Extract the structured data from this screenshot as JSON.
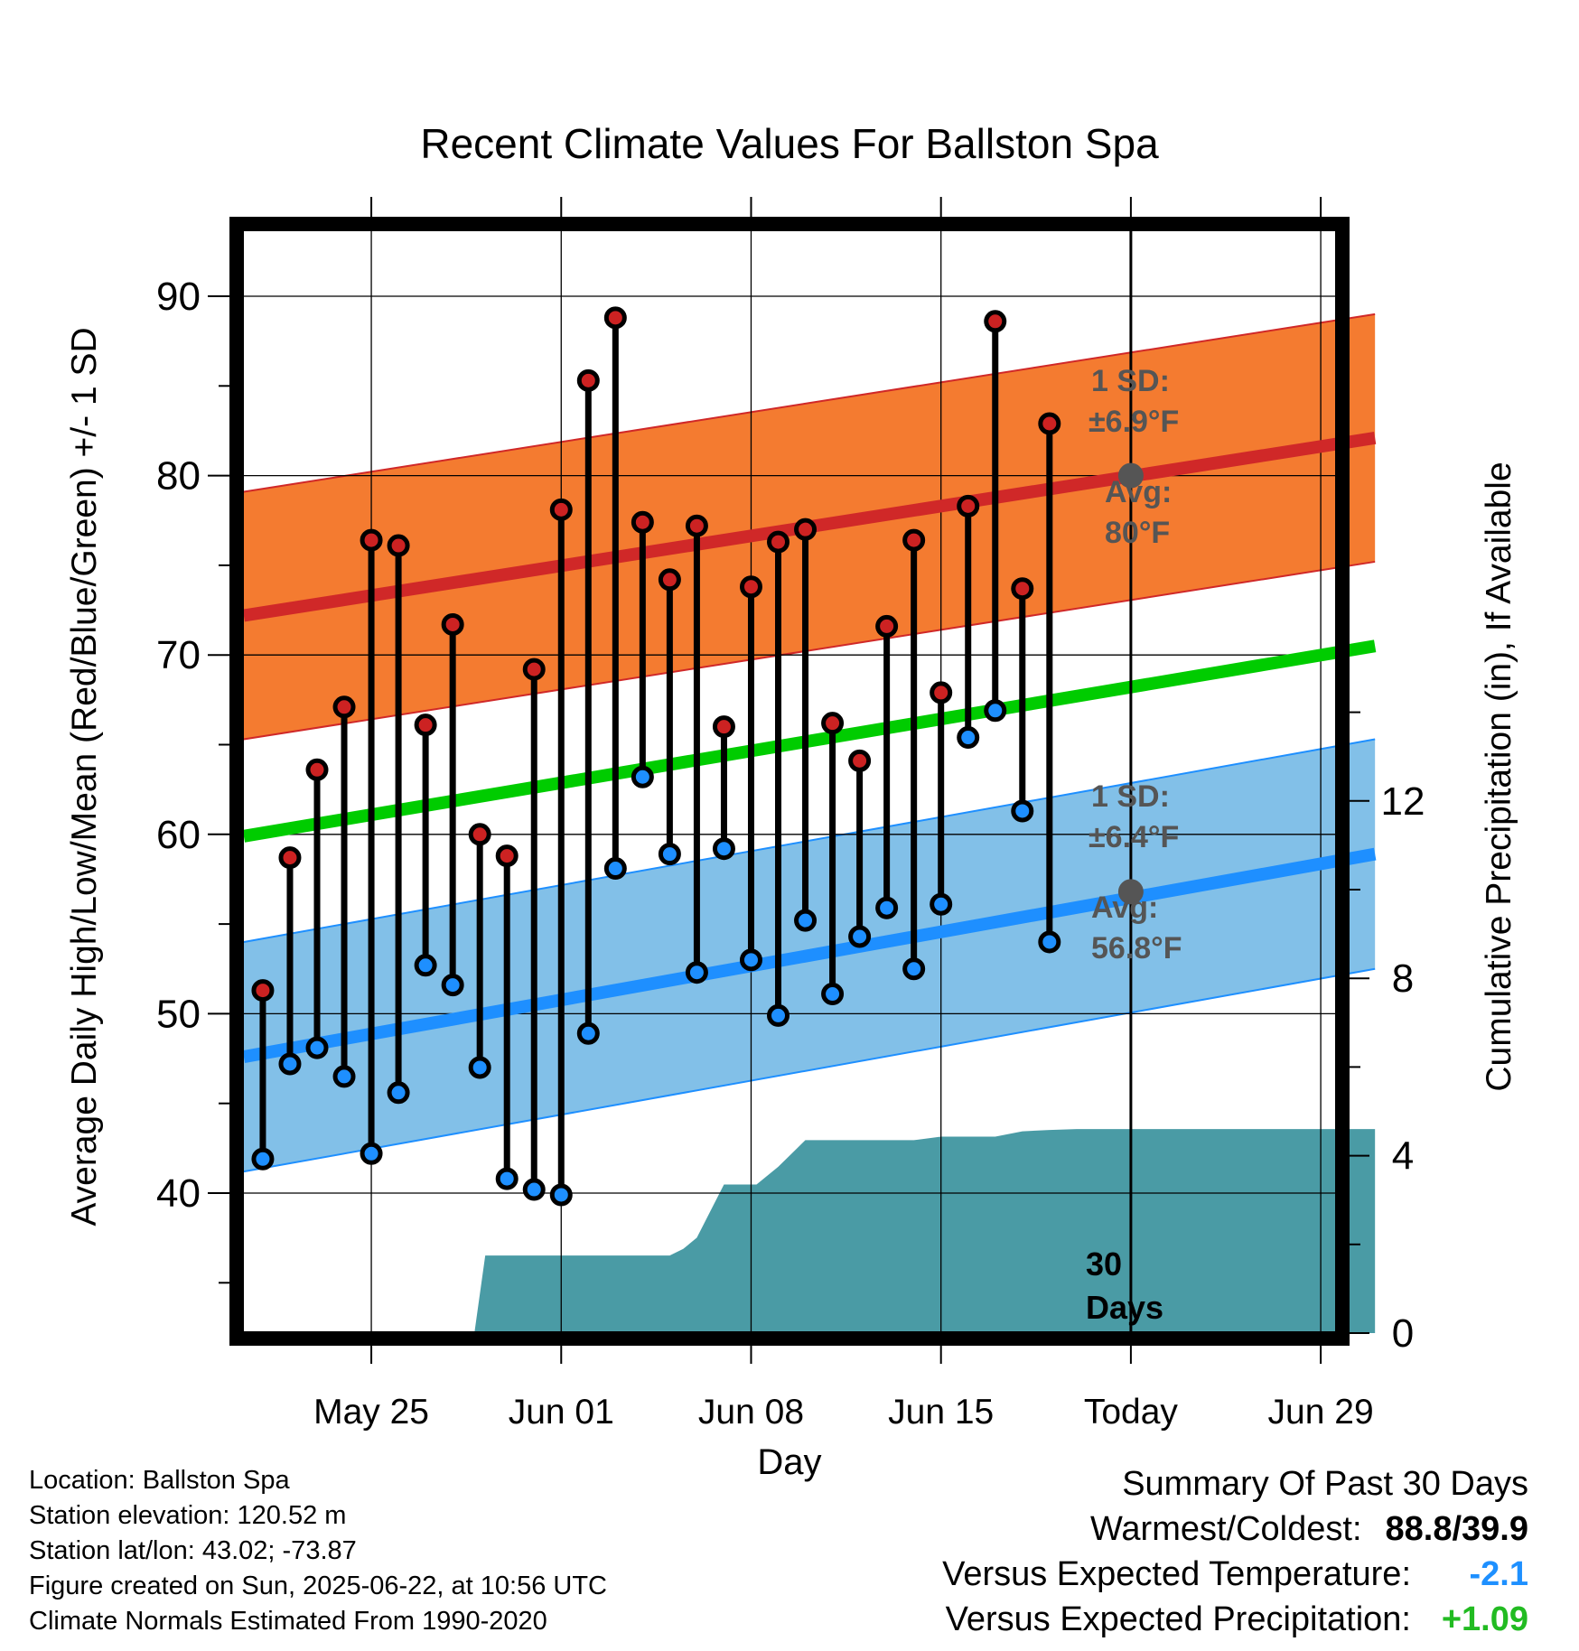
{
  "chart_data": {
    "type": "line",
    "title": "Recent Climate Values For Ballston Spa",
    "xlabel": "Day",
    "ylabel": "Average Daily High/Low/Mean (Red/Blue/Green) +/- 1 SD",
    "y2label": "Cumulative Precipitation (in), If Available",
    "xlim": [
      -3.3,
      39.3
    ],
    "ylim": [
      32.3,
      94
    ],
    "y2lim": [
      0,
      24.6
    ],
    "grid": true,
    "yticks": [
      40,
      50,
      60,
      70,
      80,
      90
    ],
    "y2ticks": [
      0,
      4,
      8,
      12
    ],
    "xticks": [
      {
        "x": 2,
        "label": "May 25"
      },
      {
        "x": 9,
        "label": "Jun 01"
      },
      {
        "x": 16,
        "label": "Jun 08"
      },
      {
        "x": 23,
        "label": "Jun 15"
      },
      {
        "x": 30,
        "label": "Today"
      },
      {
        "x": 37,
        "label": "Jun 29"
      }
    ],
    "today_x": 30,
    "today_label_line1": "30",
    "today_label_line2": "Days",
    "normal_high": {
      "x": [
        -2.7,
        39
      ],
      "values": [
        72.2,
        82.1
      ],
      "sd": 6.9
    },
    "normal_low": {
      "x": [
        -2.7,
        39
      ],
      "values": [
        47.6,
        58.9
      ],
      "sd": 6.4
    },
    "normal_mean": {
      "x": [
        -2.7,
        39
      ],
      "values": [
        59.9,
        70.5
      ]
    },
    "high_annotation": {
      "line1": "1 SD:",
      "line2": "±6.9°F",
      "avg_label": "Avg:",
      "avg_value": "80°F",
      "avg": 80
    },
    "low_annotation": {
      "line1": "1 SD:",
      "line2": "±6.4°F",
      "avg_label": "Avg:",
      "avg_value": "56.8°F",
      "avg": 56.8
    },
    "daily_x": [
      -2,
      -1,
      0,
      1,
      2,
      3,
      4,
      5,
      6,
      7,
      8,
      9,
      10,
      11,
      12,
      13,
      14,
      15,
      16,
      17,
      18,
      19,
      20,
      21,
      22,
      23,
      24,
      25,
      26,
      27,
      28,
      29
    ],
    "daily_high": [
      51.3,
      58.7,
      63.6,
      67.1,
      76.4,
      76.1,
      66.1,
      71.7,
      60.0,
      58.8,
      69.2,
      78.1,
      85.3,
      88.8,
      77.4,
      74.2,
      77.2,
      66.0,
      73.8,
      76.3,
      77.0,
      66.2,
      64.1,
      71.6,
      76.4,
      67.9,
      78.3,
      88.6,
      73.7,
      82.9,
      null,
      null
    ],
    "daily_low": [
      41.9,
      47.2,
      48.1,
      46.5,
      42.2,
      45.6,
      52.7,
      51.6,
      47.0,
      40.8,
      40.2,
      39.9,
      48.9,
      58.1,
      63.2,
      58.9,
      52.3,
      59.2,
      53.0,
      49.9,
      55.2,
      51.1,
      54.3,
      55.9,
      52.5,
      56.1,
      65.4,
      66.9,
      61.3,
      54.0,
      null,
      null
    ],
    "precip": {
      "x": [
        5.8,
        6.2,
        7,
        8,
        9,
        10,
        11,
        12,
        13,
        13.5,
        14,
        15,
        15.8,
        16.2,
        17,
        18,
        19,
        20,
        21,
        22,
        23,
        24,
        25,
        26,
        27,
        28,
        29,
        30,
        31,
        32,
        33,
        34,
        35,
        36,
        37,
        38,
        39
      ],
      "values": [
        0,
        1.75,
        1.75,
        1.75,
        1.75,
        1.75,
        1.75,
        1.75,
        1.75,
        1.9,
        2.15,
        3.35,
        3.35,
        3.35,
        3.75,
        4.35,
        4.35,
        4.35,
        4.35,
        4.35,
        4.43,
        4.43,
        4.43,
        4.55,
        4.58,
        4.6,
        4.6,
        4.6,
        4.6,
        4.6,
        4.6,
        4.6,
        4.6,
        4.6,
        4.6,
        4.6,
        4.6
      ]
    },
    "colors": {
      "high_band": "#f47b30",
      "high_line": "#d02828",
      "low_band": "#82c0e8",
      "low_line": "#1e8fff",
      "mean_line": "#00cc00",
      "precip": "#4a9ba5",
      "high_dot": "#cc2222",
      "low_dot": "#1e8fff",
      "annotation": "#555555"
    }
  },
  "info": {
    "location": "Location: Ballston Spa",
    "elevation": "Station elevation: 120.52 m",
    "latlon": "Station lat/lon: 43.02; -73.87",
    "created": "Figure created on Sun, 2025-06-22, at 10:56 UTC",
    "normals": "Climate Normals Estimated From 1990-2020"
  },
  "summary": {
    "title": "Summary Of Past 30 Days",
    "warmest_coldest_label": "Warmest/Coldest:",
    "warmest_coldest_value": "88.8/39.9",
    "temp_label": "Versus Expected Temperature:",
    "temp_value": "-2.1",
    "precip_label": "Versus Expected Precipitation:",
    "precip_value": "+1.09"
  }
}
